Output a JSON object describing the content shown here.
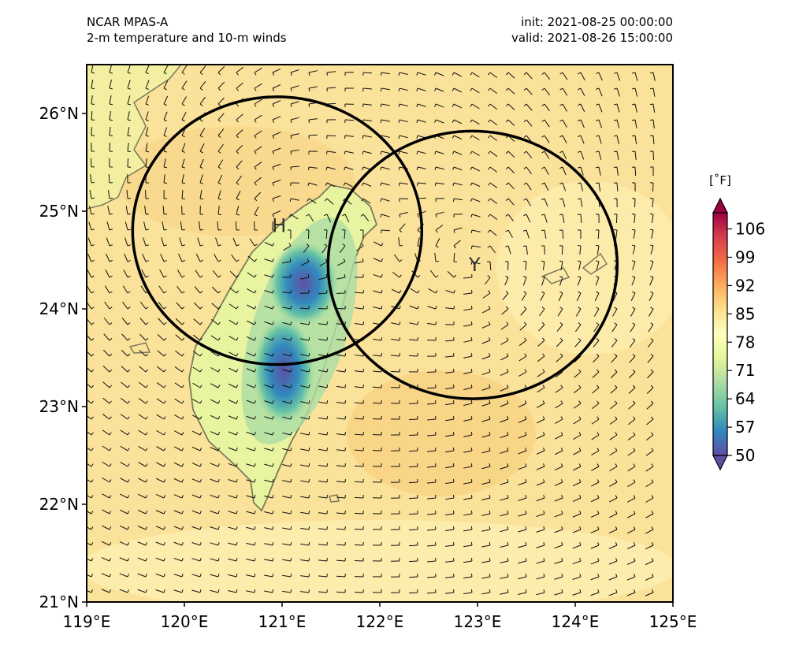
{
  "header": {
    "model": "NCAR MPAS-A",
    "field": "2-m temperature and 10-m winds",
    "init": "init: 2021-08-25 00:00:00",
    "valid": "valid: 2021-08-26 15:00:00"
  },
  "map": {
    "lon_range": [
      119,
      125
    ],
    "lat_range": [
      21,
      26.5
    ],
    "lon_ticks": [
      "119°E",
      "120°E",
      "121°E",
      "122°E",
      "123°E",
      "124°E",
      "125°E"
    ],
    "lat_ticks": [
      "21°N",
      "22°N",
      "23°N",
      "24°N",
      "25°N",
      "26°N"
    ],
    "markers": [
      {
        "label": "H",
        "lon": 120.97,
        "lat": 24.85
      },
      {
        "label": "Y",
        "lon": 122.97,
        "lat": 24.45
      }
    ],
    "circles": [
      {
        "center_lon": 120.95,
        "center_lat": 24.8,
        "radius_deg_lon": 1.48,
        "radius_deg_lat": 1.37
      },
      {
        "center_lon": 122.95,
        "center_lat": 24.45,
        "radius_deg_lon": 1.48,
        "radius_deg_lat": 1.37
      }
    ],
    "background_color": "#fbdf8e",
    "land_outline_color": "#7a7a5a"
  },
  "colorbar": {
    "unit": "[˚F]",
    "ticks": [
      "106",
      "99",
      "92",
      "85",
      "78",
      "71",
      "64",
      "57",
      "50"
    ],
    "min": 50,
    "max": 110,
    "colors": [
      "#5e4fa2",
      "#3288bd",
      "#66c2a5",
      "#abdda4",
      "#e6f598",
      "#ffffbf",
      "#fee08b",
      "#fdae61",
      "#f46d43",
      "#d53e4f",
      "#9e0142"
    ]
  }
}
